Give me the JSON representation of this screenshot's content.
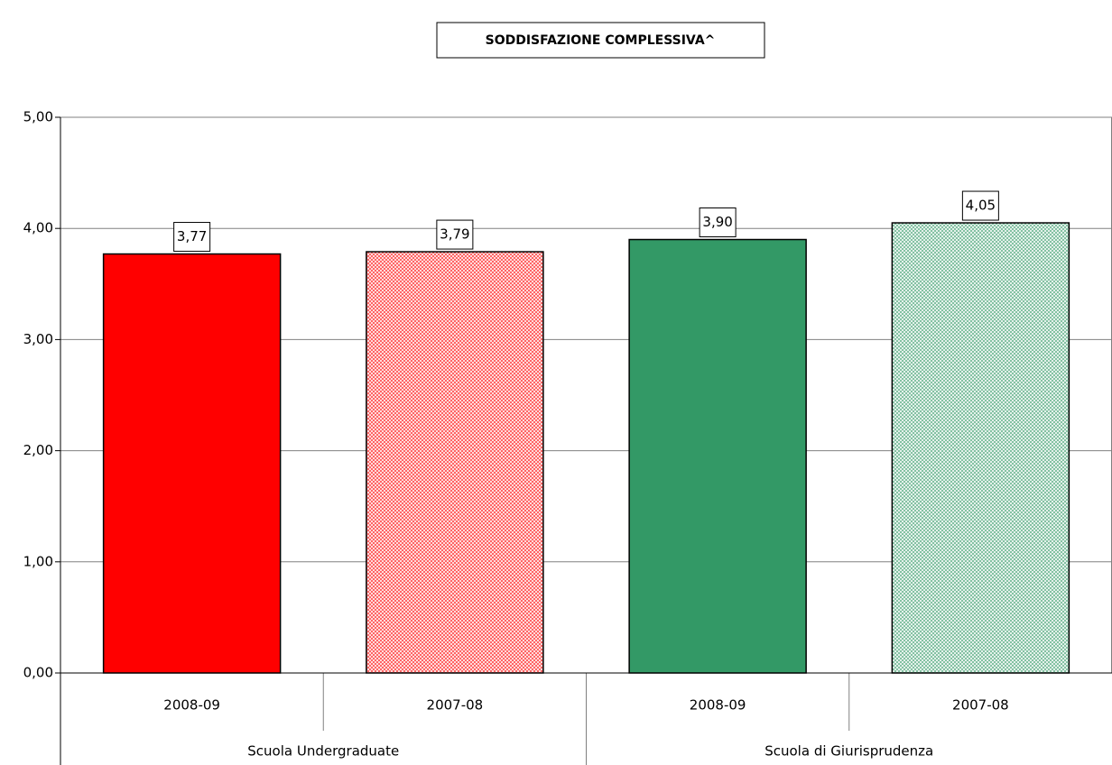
{
  "chart_data": {
    "type": "bar",
    "title": "SODDISFAZIONE COMPLESSIVA^",
    "categories": [
      "2008-09",
      "2007-08",
      "2008-09",
      "2007-08"
    ],
    "groups": [
      "Scuola Undergraduate",
      "Scuola di Giurisprudenza"
    ],
    "values": [
      3.77,
      3.79,
      3.9,
      4.05
    ],
    "value_labels": [
      "3,77",
      "3,79",
      "3,90",
      "4,05"
    ],
    "colors": [
      "#ff0000",
      "#ff0000",
      "#339966",
      "#339966"
    ],
    "patterned": [
      false,
      true,
      false,
      true
    ],
    "ylim": [
      0,
      5
    ],
    "yticks": [
      {
        "value": 0,
        "label": "0,00"
      },
      {
        "value": 1,
        "label": "1,00"
      },
      {
        "value": 2,
        "label": "2,00"
      },
      {
        "value": 3,
        "label": "3,00"
      },
      {
        "value": 4,
        "label": "4,00"
      },
      {
        "value": 5,
        "label": "5,00"
      }
    ],
    "grid": true
  }
}
